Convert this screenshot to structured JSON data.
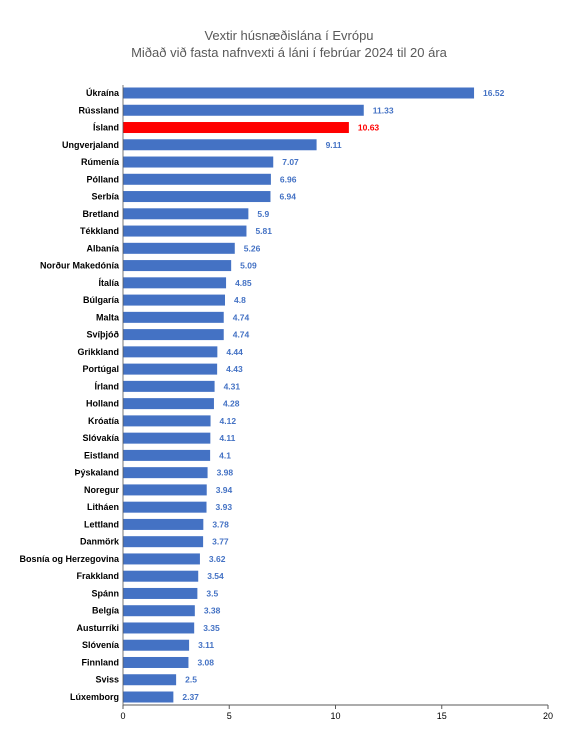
{
  "chart_data": {
    "type": "bar",
    "orientation": "horizontal",
    "title": "Vextir húsnæðislána í Evrópu",
    "subtitle": "Miðað við fasta nafnvexti á láni í febrúar 2024 til 20 ára",
    "categories": [
      "Úkraína",
      "Rússland",
      "Ísland",
      "Ungverjaland",
      "Rúmenía",
      "Pólland",
      "Serbía",
      "Bretland",
      "Tékkland",
      "Albanía",
      "Norður Makedónía",
      "Ítalía",
      "Búlgaría",
      "Malta",
      "Svíþjóð",
      "Grikkland",
      "Portúgal",
      "Írland",
      "Holland",
      "Króatía",
      "Slóvakía",
      "Eistland",
      "Þýskaland",
      "Noregur",
      "Litháen",
      "Lettland",
      "Danmörk",
      "Bosnía og Herzegovina",
      "Frakkland",
      "Spánn",
      "Belgía",
      "Austurríki",
      "Slóvenía",
      "Finnland",
      "Sviss",
      "Lúxemborg"
    ],
    "values": [
      16.52,
      11.33,
      10.63,
      9.11,
      7.07,
      6.96,
      6.94,
      5.9,
      5.81,
      5.26,
      5.09,
      4.85,
      4.8,
      4.74,
      4.74,
      4.44,
      4.43,
      4.31,
      4.28,
      4.12,
      4.11,
      4.1,
      3.98,
      3.94,
      3.93,
      3.78,
      3.77,
      3.62,
      3.54,
      3.5,
      3.38,
      3.35,
      3.11,
      3.08,
      2.5,
      2.37
    ],
    "value_labels": [
      "16.52",
      "11.33",
      "10.63",
      "9.11",
      "7.07",
      "6.96",
      "6.94",
      "5.9",
      "5.81",
      "5.26",
      "5.09",
      "4.85",
      "4.8",
      "4.74",
      "4.74",
      "4.44",
      "4.43",
      "4.31",
      "4.28",
      "4.12",
      "4.11",
      "4.1",
      "3.98",
      "3.94",
      "3.93",
      "3.78",
      "3.77",
      "3.62",
      "3.54",
      "3.5",
      "3.38",
      "3.35",
      "3.11",
      "3.08",
      "2.5",
      "2.37"
    ],
    "highlight": "Ísland",
    "xlim": [
      0,
      20
    ],
    "xticks": [
      0,
      5,
      10,
      15,
      20
    ],
    "xtick_labels": [
      "0",
      "5",
      "10",
      "15",
      "20"
    ],
    "grid": false,
    "legend": "none",
    "colors": {
      "bar": "#4472c4",
      "highlight": "#ff0000",
      "label": "#4472c4",
      "highlight_label": "#ff0000",
      "axis": "#595959"
    }
  }
}
